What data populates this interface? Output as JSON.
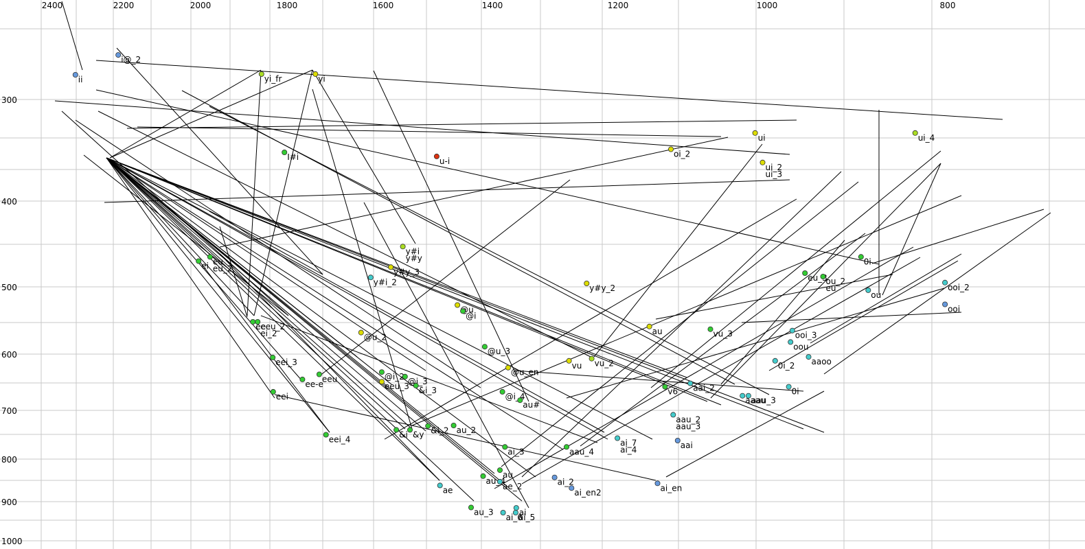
{
  "chart_data": {
    "type": "scatter",
    "title": "",
    "xlabel": "",
    "ylabel": "",
    "grid": true,
    "x_axis": {
      "reversed": true,
      "position": "top",
      "ticks": [
        "2400",
        "2200",
        "2000",
        "1800",
        "1600",
        "1400",
        "1200",
        "1000",
        "800"
      ]
    },
    "y_axis": {
      "reversed": true,
      "position": "left",
      "ticks": [
        "300",
        "400",
        "500",
        "600",
        "700",
        "800",
        "900",
        "1000"
      ]
    },
    "colors": {
      "green": "#33cc33",
      "yellowgreen": "#aadd22",
      "yellow": "#dddd00",
      "cyan": "#44cccc",
      "blue": "#6699dd",
      "red": "#dd3311",
      "grid": "#c8c8c8"
    },
    "points": [
      {
        "label": "ii",
        "f2": 2335,
        "f1": 265,
        "color": "blue"
      },
      {
        "label": "i@_2",
        "f2": 2215,
        "f1": 237,
        "color": "blue"
      },
      {
        "label": "yi_fr",
        "f2": 1859,
        "f1": 264,
        "color": "yellowgreen"
      },
      {
        "label": "yi",
        "f2": 1741,
        "f1": 264,
        "color": "yellow"
      },
      {
        "label": "I#i",
        "f2": 1806,
        "f1": 352,
        "color": "green"
      },
      {
        "label": "u-i",
        "f2": 1502,
        "f1": 356,
        "color": "red"
      },
      {
        "label": "ui",
        "f2": 1016,
        "f1": 333,
        "color": "yellow"
      },
      {
        "label": "oi_2",
        "f2": 1129,
        "f1": 349,
        "color": "yellow"
      },
      {
        "label": "ui_2",
        "f2": 1006,
        "f1": 362,
        "color": "yellow"
      },
      {
        "label": "ui_3",
        "f2": null,
        "f1": null,
        "color": "yellow"
      },
      {
        "label": "ui_4",
        "f2": 836,
        "f1": 333,
        "color": "yellowgreen"
      },
      {
        "label": "ei",
        "f2": 2005,
        "f1": 470,
        "color": "green"
      },
      {
        "label": "eu",
        "f2": 1978,
        "f1": 465,
        "color": "green"
      },
      {
        "label": "eu_2",
        "f2": null,
        "f1": null,
        "color": "green"
      },
      {
        "label": "y#i",
        "f2": 1564,
        "f1": 453,
        "color": "yellowgreen"
      },
      {
        "label": "y#y",
        "f2": null,
        "f1": null,
        "color": "yellowgreen"
      },
      {
        "label": "y#y_3",
        "f2": 1586,
        "f1": 477,
        "color": "yellow"
      },
      {
        "label": "y#i_2",
        "f2": 1626,
        "f1": 489,
        "color": "cyan"
      },
      {
        "label": "y#y_2",
        "f2": 1250,
        "f1": 496,
        "color": "yellow"
      },
      {
        "label": "0i",
        "f2": 896,
        "f1": 465,
        "color": "green"
      },
      {
        "label": "eu_3",
        "f2": 958,
        "f1": 484,
        "color": "green"
      },
      {
        "label": "ou_2",
        "f2": 938,
        "f1": 488,
        "color": "green"
      },
      {
        "label": "eu",
        "f2": null,
        "f1": null,
        "color": "green"
      },
      {
        "label": "ou",
        "f2": 888,
        "f1": 505,
        "color": "cyan"
      },
      {
        "label": "ooi_2",
        "f2": 803,
        "f1": 495,
        "color": "cyan"
      },
      {
        "label": "ooi",
        "f2": 803,
        "f1": 526,
        "color": "blue"
      },
      {
        "label": "@u",
        "f2": 1464,
        "f1": 527,
        "color": "yellow"
      },
      {
        "label": "@i",
        "f2": 1454,
        "f1": 536,
        "color": "green"
      },
      {
        "label": "ee",
        "f2": 1879,
        "f1": 552,
        "color": "green"
      },
      {
        "label": "eeu_2",
        "f2": 1868,
        "f1": 552,
        "color": "green"
      },
      {
        "label": "ei_2",
        "f2": null,
        "f1": null,
        "color": "green"
      },
      {
        "label": "@u_2",
        "f2": 1646,
        "f1": 568,
        "color": "yellow"
      },
      {
        "label": "@u_3",
        "f2": 1414,
        "f1": 589,
        "color": "green"
      },
      {
        "label": "au",
        "f2": 1158,
        "f1": 559,
        "color": "yellow"
      },
      {
        "label": "vu_3",
        "f2": 1076,
        "f1": 563,
        "color": "green"
      },
      {
        "label": "ooi_3",
        "f2": 972,
        "f1": 565,
        "color": "cyan"
      },
      {
        "label": "oou",
        "f2": 974,
        "f1": 582,
        "color": "cyan"
      },
      {
        "label": "aaoo",
        "f2": 954,
        "f1": 605,
        "color": "cyan"
      },
      {
        "label": "0i_2",
        "f2": 991,
        "f1": 612,
        "color": "cyan"
      },
      {
        "label": "vu",
        "f2": 1278,
        "f1": 612,
        "color": "yellow"
      },
      {
        "label": "vu_2",
        "f2": 1242,
        "f1": 608,
        "color": "yellowgreen"
      },
      {
        "label": "@u_en",
        "f2": 1375,
        "f1": 624,
        "color": "yellow"
      },
      {
        "label": "eei_3",
        "f2": 1833,
        "f1": 606,
        "color": "green"
      },
      {
        "label": "@i_2",
        "f2": 1603,
        "f1": 632,
        "color": "green"
      },
      {
        "label": "eeu_3",
        "f2": 1603,
        "f1": 649,
        "color": "yellow"
      },
      {
        "label": "@i_3",
        "f2": 1560,
        "f1": 640,
        "color": "green"
      },
      {
        "label": "&i_3",
        "f2": 1540,
        "f1": 656,
        "color": "green"
      },
      {
        "label": "eeu",
        "f2": 1733,
        "f1": 636,
        "color": "green"
      },
      {
        "label": "ee-e",
        "f2": 1768,
        "f1": 645,
        "color": "green"
      },
      {
        "label": "v6",
        "f2": 1137,
        "f1": 658,
        "color": "green"
      },
      {
        "label": "aai_2",
        "f2": 1103,
        "f1": 652,
        "color": "cyan"
      },
      {
        "label": "0i",
        "f2": 976,
        "f1": 658,
        "color": "cyan"
      },
      {
        "label": "eei",
        "f2": 1832,
        "f1": 667,
        "color": "green"
      },
      {
        "label": "@i_4",
        "f2": 1384,
        "f1": 667,
        "color": "green"
      },
      {
        "label": "au#",
        "f2": 1356,
        "f1": 682,
        "color": "green"
      },
      {
        "label": "aaau",
        "f2": 1033,
        "f1": 674,
        "color": "cyan"
      },
      {
        "label": "aau_3",
        "f2": 1025,
        "f1": 674,
        "color": "cyan"
      },
      {
        "label": "aau_2",
        "f2": 1126,
        "f1": 709,
        "color": "cyan"
      },
      {
        "label": "aau_3",
        "f2": null,
        "f1": null,
        "color": "cyan"
      },
      {
        "label": "&i",
        "f2": 1576,
        "f1": 740,
        "color": "green"
      },
      {
        "label": "&y",
        "f2": 1551,
        "f1": 740,
        "color": "green"
      },
      {
        "label": "&i_2",
        "f2": 1518,
        "f1": 732,
        "color": "green"
      },
      {
        "label": "au_2",
        "f2": 1471,
        "f1": 731,
        "color": "green"
      },
      {
        "label": "eei_4",
        "f2": 1719,
        "f1": 750,
        "color": "green"
      },
      {
        "label": "ai_7",
        "f2": 1201,
        "f1": 757,
        "color": "cyan"
      },
      {
        "label": "ai_4",
        "f2": null,
        "f1": null,
        "color": "cyan"
      },
      {
        "label": "aai",
        "f2": 1120,
        "f1": 762,
        "color": "blue"
      },
      {
        "label": "ai_3",
        "f2": 1380,
        "f1": 775,
        "color": "green"
      },
      {
        "label": "aau_4",
        "f2": 1282,
        "f1": 775,
        "color": "green"
      },
      {
        "label": "au",
        "f2": 1388,
        "f1": 826,
        "color": "green"
      },
      {
        "label": "au_4",
        "f2": 1417,
        "f1": 840,
        "color": "green"
      },
      {
        "label": "ae_2",
        "f2": 1388,
        "f1": 853,
        "color": "cyan"
      },
      {
        "label": "ae",
        "f2": 1496,
        "f1": 862,
        "color": "cyan"
      },
      {
        "label": "ai_2",
        "f2": 1301,
        "f1": 843,
        "color": "blue"
      },
      {
        "label": "ai_en2",
        "f2": 1274,
        "f1": 868,
        "color": "blue"
      },
      {
        "label": "ai_en",
        "f2": 1147,
        "f1": 857,
        "color": "blue"
      },
      {
        "label": "au_3",
        "f2": 1439,
        "f1": 915,
        "color": "green"
      },
      {
        "label": "ai",
        "f2": 1362,
        "f1": 916,
        "color": "cyan"
      },
      {
        "label": "ai_6",
        "f2": 1383,
        "f1": 928,
        "color": "cyan"
      },
      {
        "label": "ai_5",
        "f2": 1363,
        "f1": 928,
        "color": "cyan"
      }
    ]
  }
}
